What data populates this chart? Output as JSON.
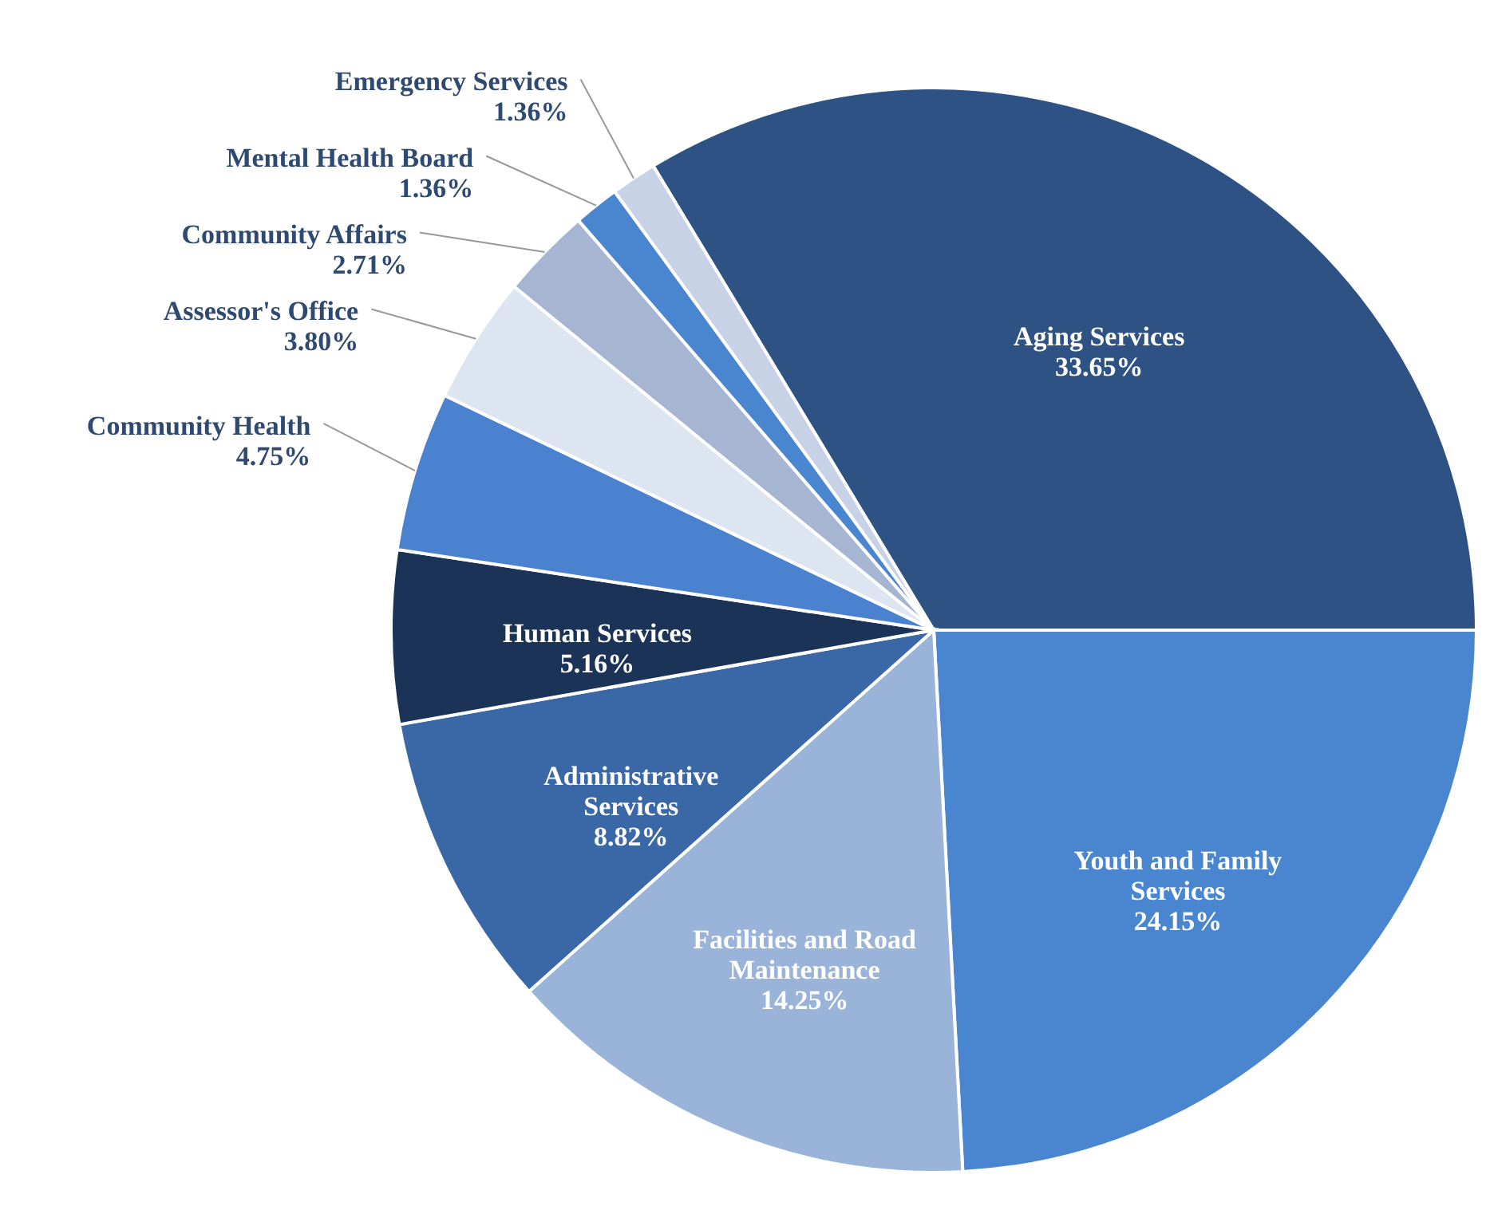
{
  "chart_data": {
    "type": "pie",
    "categories": [
      "Aging Services",
      "Youth and Family Services",
      "Facilities and Road Maintenance",
      "Administrative Services",
      "Human Services",
      "Community Health",
      "Assessor's Office",
      "Community Affairs",
      "Mental Health Board",
      "Emergency Services"
    ],
    "values": [
      33.65,
      24.15,
      14.25,
      8.82,
      5.16,
      4.75,
      3.8,
      2.71,
      1.36,
      1.36
    ],
    "value_labels": [
      "33.65%",
      "24.15%",
      "14.25%",
      "8.82%",
      "5.16%",
      "4.75%",
      "3.80%",
      "2.71%",
      "1.36%",
      "1.36%"
    ],
    "colors": [
      "#2e5283",
      "#4a86d0",
      "#9ab3d8",
      "#3a68a6",
      "#1c3358",
      "#4a82cf",
      "#dde5f1",
      "#a5b5d2",
      "#4a86d0",
      "#c8d2e6"
    ]
  }
}
